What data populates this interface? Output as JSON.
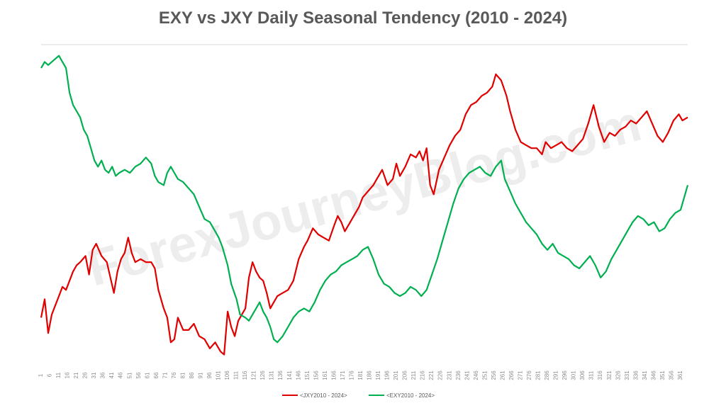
{
  "watermark": "ForexJourneyBlog.com",
  "chart_data": {
    "type": "line",
    "title": "EXY vs JXY Daily Seasonal Tendency (2010 - 2024)",
    "xlabel": "",
    "ylabel": "",
    "grid": false,
    "legend_position": "bottom",
    "x_tick_start": 1,
    "x_tick_step": 5,
    "x_tick_end": 361,
    "x_range": [
      1,
      365
    ],
    "y_range": [
      0,
      100
    ],
    "series": [
      {
        "name": "<JXY2010 - 2024>",
        "color": "#e00000",
        "points": [
          [
            1,
            13
          ],
          [
            3,
            19
          ],
          [
            5,
            8
          ],
          [
            7,
            14
          ],
          [
            9,
            17
          ],
          [
            11,
            20
          ],
          [
            13,
            23
          ],
          [
            15,
            22
          ],
          [
            17,
            25
          ],
          [
            19,
            28
          ],
          [
            21,
            30
          ],
          [
            23,
            31
          ],
          [
            26,
            33
          ],
          [
            28,
            27
          ],
          [
            30,
            35
          ],
          [
            32,
            37
          ],
          [
            35,
            33
          ],
          [
            38,
            31
          ],
          [
            40,
            26
          ],
          [
            42,
            21
          ],
          [
            44,
            28
          ],
          [
            46,
            32
          ],
          [
            48,
            34
          ],
          [
            50,
            39
          ],
          [
            52,
            34
          ],
          [
            54,
            31
          ],
          [
            57,
            32
          ],
          [
            60,
            31
          ],
          [
            63,
            31
          ],
          [
            65,
            29
          ],
          [
            67,
            22
          ],
          [
            70,
            16
          ],
          [
            72,
            13
          ],
          [
            74,
            5
          ],
          [
            76,
            6
          ],
          [
            78,
            13
          ],
          [
            81,
            9
          ],
          [
            84,
            9
          ],
          [
            87,
            11
          ],
          [
            90,
            7
          ],
          [
            93,
            6
          ],
          [
            96,
            3
          ],
          [
            99,
            5
          ],
          [
            102,
            2
          ],
          [
            104,
            1
          ],
          [
            106,
            15
          ],
          [
            108,
            10
          ],
          [
            110,
            7
          ],
          [
            112,
            12
          ],
          [
            114,
            14
          ],
          [
            116,
            16
          ],
          [
            118,
            26
          ],
          [
            120,
            31
          ],
          [
            122,
            28
          ],
          [
            124,
            26
          ],
          [
            126,
            25
          ],
          [
            128,
            21
          ],
          [
            130,
            16
          ],
          [
            132,
            18
          ],
          [
            134,
            20
          ],
          [
            137,
            21
          ],
          [
            140,
            22
          ],
          [
            143,
            25
          ],
          [
            146,
            32
          ],
          [
            149,
            36
          ],
          [
            151,
            38
          ],
          [
            154,
            42
          ],
          [
            157,
            40
          ],
          [
            160,
            39
          ],
          [
            163,
            38
          ],
          [
            166,
            43
          ],
          [
            168,
            46
          ],
          [
            170,
            44
          ],
          [
            172,
            41
          ],
          [
            175,
            44
          ],
          [
            178,
            47
          ],
          [
            180,
            49
          ],
          [
            182,
            52
          ],
          [
            185,
            54
          ],
          [
            188,
            56
          ],
          [
            190,
            58
          ],
          [
            193,
            61
          ],
          [
            196,
            56
          ],
          [
            199,
            58
          ],
          [
            201,
            63
          ],
          [
            203,
            59
          ],
          [
            206,
            62
          ],
          [
            209,
            66
          ],
          [
            212,
            65
          ],
          [
            214,
            67
          ],
          [
            216,
            64
          ],
          [
            218,
            68
          ],
          [
            220,
            56
          ],
          [
            222,
            53
          ],
          [
            225,
            61
          ],
          [
            228,
            65
          ],
          [
            231,
            69
          ],
          [
            234,
            72
          ],
          [
            237,
            74
          ],
          [
            240,
            79
          ],
          [
            243,
            82
          ],
          [
            246,
            83
          ],
          [
            249,
            85
          ],
          [
            252,
            86
          ],
          [
            255,
            88
          ],
          [
            257,
            92
          ],
          [
            260,
            90
          ],
          [
            263,
            85
          ],
          [
            265,
            80
          ],
          [
            268,
            74
          ],
          [
            271,
            70
          ],
          [
            274,
            69
          ],
          [
            277,
            68
          ],
          [
            280,
            68
          ],
          [
            283,
            66
          ],
          [
            285,
            70
          ],
          [
            288,
            68
          ],
          [
            291,
            69
          ],
          [
            294,
            70
          ],
          [
            297,
            68
          ],
          [
            300,
            67
          ],
          [
            303,
            69
          ],
          [
            306,
            71
          ],
          [
            309,
            76
          ],
          [
            312,
            82
          ],
          [
            315,
            75
          ],
          [
            318,
            70
          ],
          [
            321,
            73
          ],
          [
            324,
            72
          ],
          [
            327,
            74
          ],
          [
            330,
            75
          ],
          [
            333,
            77
          ],
          [
            336,
            76
          ],
          [
            339,
            78
          ],
          [
            342,
            80
          ],
          [
            345,
            76
          ],
          [
            348,
            72
          ],
          [
            351,
            70
          ],
          [
            354,
            73
          ],
          [
            357,
            77
          ],
          [
            360,
            79
          ],
          [
            362,
            77
          ],
          [
            365,
            78
          ]
        ]
      },
      {
        "name": "<EXY2010 - 2024>",
        "color": "#00b050",
        "points": [
          [
            1,
            94
          ],
          [
            3,
            96
          ],
          [
            5,
            95
          ],
          [
            7,
            96
          ],
          [
            9,
            97
          ],
          [
            11,
            98
          ],
          [
            13,
            96
          ],
          [
            15,
            94
          ],
          [
            17,
            86
          ],
          [
            19,
            82
          ],
          [
            21,
            80
          ],
          [
            23,
            78
          ],
          [
            25,
            74
          ],
          [
            27,
            72
          ],
          [
            29,
            68
          ],
          [
            31,
            64
          ],
          [
            33,
            62
          ],
          [
            35,
            64
          ],
          [
            37,
            61
          ],
          [
            39,
            60
          ],
          [
            41,
            62
          ],
          [
            43,
            59
          ],
          [
            45,
            60
          ],
          [
            48,
            61
          ],
          [
            51,
            60
          ],
          [
            54,
            62
          ],
          [
            57,
            63
          ],
          [
            60,
            65
          ],
          [
            63,
            63
          ],
          [
            65,
            59
          ],
          [
            67,
            57
          ],
          [
            70,
            56
          ],
          [
            72,
            60
          ],
          [
            74,
            62
          ],
          [
            76,
            60
          ],
          [
            78,
            58
          ],
          [
            81,
            57
          ],
          [
            84,
            55
          ],
          [
            87,
            53
          ],
          [
            90,
            49
          ],
          [
            93,
            45
          ],
          [
            96,
            44
          ],
          [
            99,
            41
          ],
          [
            101,
            39
          ],
          [
            103,
            36
          ],
          [
            106,
            30
          ],
          [
            108,
            24
          ],
          [
            111,
            19
          ],
          [
            113,
            14
          ],
          [
            116,
            13
          ],
          [
            118,
            12
          ],
          [
            120,
            14
          ],
          [
            122,
            16
          ],
          [
            124,
            18
          ],
          [
            126,
            15
          ],
          [
            128,
            13
          ],
          [
            130,
            10
          ],
          [
            132,
            6
          ],
          [
            134,
            5
          ],
          [
            137,
            7
          ],
          [
            140,
            10
          ],
          [
            143,
            13
          ],
          [
            146,
            15
          ],
          [
            149,
            16
          ],
          [
            152,
            15
          ],
          [
            155,
            18
          ],
          [
            158,
            22
          ],
          [
            161,
            25
          ],
          [
            164,
            27
          ],
          [
            167,
            28
          ],
          [
            170,
            30
          ],
          [
            173,
            31
          ],
          [
            176,
            32
          ],
          [
            179,
            33
          ],
          [
            182,
            35
          ],
          [
            185,
            36
          ],
          [
            188,
            32
          ],
          [
            191,
            27
          ],
          [
            194,
            24
          ],
          [
            197,
            23
          ],
          [
            200,
            21
          ],
          [
            203,
            20
          ],
          [
            206,
            21
          ],
          [
            209,
            23
          ],
          [
            212,
            22
          ],
          [
            215,
            20
          ],
          [
            218,
            22
          ],
          [
            221,
            27
          ],
          [
            224,
            32
          ],
          [
            227,
            38
          ],
          [
            230,
            44
          ],
          [
            233,
            50
          ],
          [
            236,
            55
          ],
          [
            239,
            58
          ],
          [
            242,
            60
          ],
          [
            245,
            61
          ],
          [
            248,
            62
          ],
          [
            251,
            60
          ],
          [
            254,
            59
          ],
          [
            257,
            62
          ],
          [
            260,
            64
          ],
          [
            262,
            58
          ],
          [
            265,
            54
          ],
          [
            268,
            50
          ],
          [
            271,
            47
          ],
          [
            274,
            44
          ],
          [
            277,
            42
          ],
          [
            280,
            40
          ],
          [
            283,
            37
          ],
          [
            286,
            35
          ],
          [
            289,
            37
          ],
          [
            292,
            34
          ],
          [
            295,
            33
          ],
          [
            298,
            32
          ],
          [
            301,
            30
          ],
          [
            304,
            29
          ],
          [
            307,
            31
          ],
          [
            310,
            33
          ],
          [
            313,
            30
          ],
          [
            316,
            26
          ],
          [
            319,
            28
          ],
          [
            322,
            32
          ],
          [
            325,
            35
          ],
          [
            328,
            38
          ],
          [
            331,
            41
          ],
          [
            334,
            44
          ],
          [
            337,
            46
          ],
          [
            340,
            45
          ],
          [
            343,
            43
          ],
          [
            346,
            44
          ],
          [
            349,
            41
          ],
          [
            352,
            42
          ],
          [
            355,
            45
          ],
          [
            358,
            47
          ],
          [
            361,
            48
          ],
          [
            363,
            52
          ],
          [
            365,
            56
          ]
        ]
      }
    ]
  }
}
